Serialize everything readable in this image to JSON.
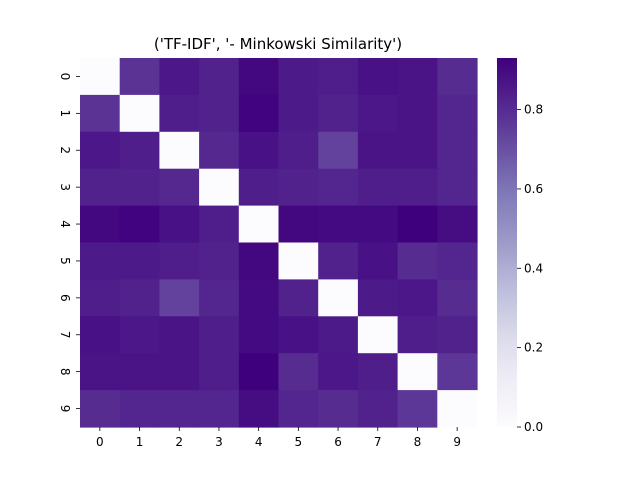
{
  "chart_data": {
    "type": "heatmap",
    "title": "('TF-IDF', '- Minkowski Similarity')",
    "xlabel": "",
    "ylabel": "",
    "x_categories": [
      "0",
      "1",
      "2",
      "3",
      "4",
      "5",
      "6",
      "7",
      "8",
      "9"
    ],
    "y_categories": [
      "0",
      "1",
      "2",
      "3",
      "4",
      "5",
      "6",
      "7",
      "8",
      "9"
    ],
    "values": [
      [
        0.0,
        0.78,
        0.86,
        0.83,
        0.91,
        0.85,
        0.84,
        0.88,
        0.87,
        0.8
      ],
      [
        0.78,
        0.0,
        0.84,
        0.83,
        0.92,
        0.85,
        0.83,
        0.86,
        0.87,
        0.82
      ],
      [
        0.86,
        0.84,
        0.0,
        0.81,
        0.88,
        0.84,
        0.74,
        0.87,
        0.87,
        0.82
      ],
      [
        0.83,
        0.83,
        0.81,
        0.0,
        0.84,
        0.83,
        0.82,
        0.84,
        0.84,
        0.82
      ],
      [
        0.91,
        0.92,
        0.88,
        0.84,
        0.0,
        0.91,
        0.9,
        0.9,
        0.93,
        0.89
      ],
      [
        0.85,
        0.85,
        0.84,
        0.83,
        0.91,
        0.0,
        0.83,
        0.88,
        0.8,
        0.82
      ],
      [
        0.84,
        0.83,
        0.74,
        0.82,
        0.9,
        0.83,
        0.0,
        0.85,
        0.86,
        0.8
      ],
      [
        0.88,
        0.86,
        0.87,
        0.84,
        0.9,
        0.88,
        0.85,
        0.0,
        0.84,
        0.83
      ],
      [
        0.87,
        0.87,
        0.87,
        0.84,
        0.93,
        0.8,
        0.86,
        0.84,
        0.0,
        0.77
      ],
      [
        0.8,
        0.82,
        0.82,
        0.82,
        0.89,
        0.82,
        0.8,
        0.83,
        0.77,
        0.0
      ]
    ],
    "colormap": "Purples",
    "vmin": 0.0,
    "vmax": 0.93,
    "colorbar_ticks": [
      "0.0",
      "0.2",
      "0.4",
      "0.6",
      "0.8"
    ],
    "colorbar_tick_values": [
      0.0,
      0.2,
      0.4,
      0.6,
      0.8
    ],
    "grid": false
  }
}
